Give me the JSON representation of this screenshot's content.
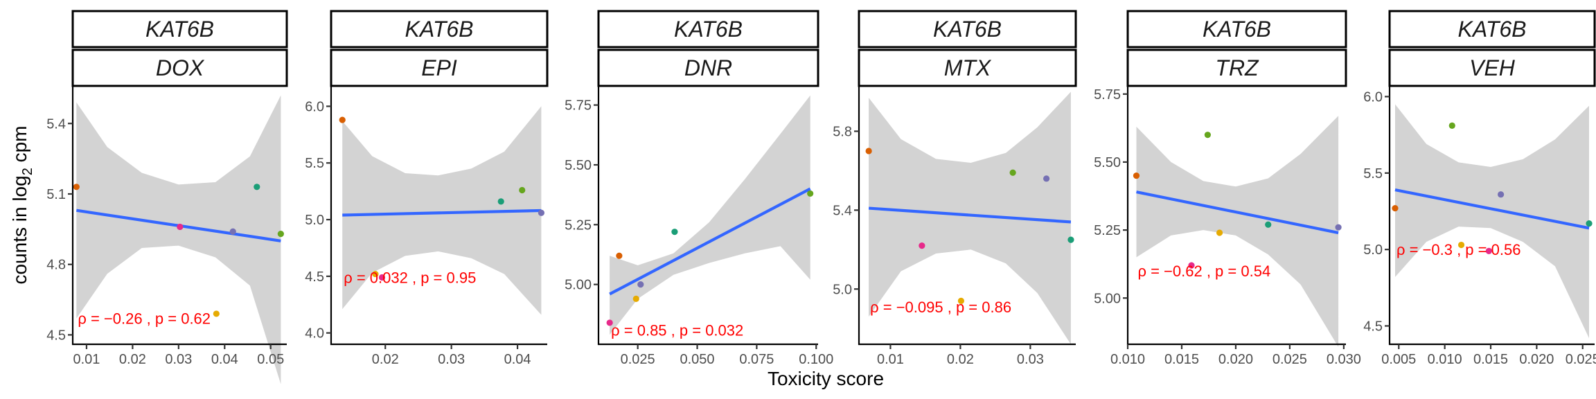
{
  "chart_data": {
    "type": "scatter",
    "xlabel": "Toxicity score",
    "ylabel_prefix": "counts in log",
    "ylabel_sub": "2",
    "ylabel_suffix": " cpm",
    "gene": "KAT6B",
    "panels": [
      {
        "treatment": "DOX",
        "xlim": [
          0.007,
          0.0535
        ],
        "ylim": [
          4.46,
          5.56
        ],
        "xticks": [
          0.01,
          0.02,
          0.03,
          0.04,
          0.05
        ],
        "xtick_labels": [
          "0.01",
          "0.02",
          "0.03",
          "0.04",
          "0.05"
        ],
        "yticks": [
          4.5,
          4.8,
          5.1,
          5.4
        ],
        "ytick_labels": [
          "4.5",
          "4.8",
          "5.1",
          "5.4"
        ],
        "points": [
          {
            "x": 0.0078,
            "y": 5.13,
            "color": "#d95f02"
          },
          {
            "x": 0.0303,
            "y": 4.96,
            "color": "#e7298a"
          },
          {
            "x": 0.0418,
            "y": 4.94,
            "color": "#7570b3"
          },
          {
            "x": 0.047,
            "y": 5.13,
            "color": "#1b9e77"
          },
          {
            "x": 0.0522,
            "y": 4.93,
            "color": "#66a61e"
          },
          {
            "x": 0.0382,
            "y": 4.59,
            "color": "#e6ab02"
          }
        ],
        "fit": {
          "x0": 0.0078,
          "y0": 5.03,
          "x1": 0.0522,
          "y1": 4.9
        },
        "band": {
          "xs": [
            0.0078,
            0.0145,
            0.022,
            0.03,
            0.038,
            0.0455,
            0.0522
          ],
          "upper": [
            5.49,
            5.3,
            5.19,
            5.14,
            5.15,
            5.26,
            5.52
          ],
          "lower": [
            4.57,
            4.76,
            4.87,
            4.88,
            4.83,
            4.71,
            4.29
          ]
        },
        "annotation": "ρ = −0.26 , p = 0.62",
        "ann_x": 0.0078,
        "ann_y": 4.57
      },
      {
        "treatment": "EPI",
        "xlim": [
          0.0118,
          0.0445
        ],
        "ylim": [
          3.9,
          6.18
        ],
        "xticks": [
          0.02,
          0.03,
          0.04
        ],
        "xtick_labels": [
          "0.02",
          "0.03",
          "0.04"
        ],
        "yticks": [
          4.0,
          4.5,
          5.0,
          5.5,
          6.0
        ],
        "ytick_labels": [
          "4.0",
          "4.5",
          "5.0",
          "5.5",
          "6.0"
        ],
        "points": [
          {
            "x": 0.0135,
            "y": 5.88,
            "color": "#d95f02"
          },
          {
            "x": 0.0185,
            "y": 4.52,
            "color": "#e6ab02"
          },
          {
            "x": 0.0195,
            "y": 4.49,
            "color": "#e7298a"
          },
          {
            "x": 0.0375,
            "y": 5.16,
            "color": "#1b9e77"
          },
          {
            "x": 0.0407,
            "y": 5.26,
            "color": "#66a61e"
          },
          {
            "x": 0.0436,
            "y": 5.06,
            "color": "#7570b3"
          }
        ],
        "fit": {
          "x0": 0.0135,
          "y0": 5.04,
          "x1": 0.0436,
          "y1": 5.08
        },
        "band": {
          "xs": [
            0.0135,
            0.018,
            0.023,
            0.028,
            0.033,
            0.038,
            0.0436
          ],
          "upper": [
            5.87,
            5.56,
            5.41,
            5.39,
            5.45,
            5.6,
            6.0
          ],
          "lower": [
            4.21,
            4.53,
            4.68,
            4.72,
            4.66,
            4.52,
            4.16
          ]
        },
        "annotation": "ρ = 0.032 , p = 0.95",
        "ann_x": 0.0135,
        "ann_y": 4.49
      },
      {
        "treatment": "DNR",
        "xlim": [
          0.0085,
          0.1008
        ],
        "ylim": [
          4.75,
          5.83
        ],
        "xticks": [
          0.025,
          0.05,
          0.075,
          0.1
        ],
        "xtick_labels": [
          "0.025",
          "0.050",
          "0.075",
          "0.100"
        ],
        "yticks": [
          5.0,
          5.25,
          5.5,
          5.75
        ],
        "ytick_labels": [
          "5.00",
          "5.25",
          "5.50",
          "5.75"
        ],
        "points": [
          {
            "x": 0.0132,
            "y": 4.84,
            "color": "#e7298a"
          },
          {
            "x": 0.0172,
            "y": 5.12,
            "color": "#d95f02"
          },
          {
            "x": 0.0243,
            "y": 4.94,
            "color": "#e6ab02"
          },
          {
            "x": 0.0262,
            "y": 5.0,
            "color": "#7570b3"
          },
          {
            "x": 0.0405,
            "y": 5.22,
            "color": "#1b9e77"
          },
          {
            "x": 0.0975,
            "y": 5.38,
            "color": "#66a61e"
          }
        ],
        "fit": {
          "x0": 0.0132,
          "y0": 4.96,
          "x1": 0.0975,
          "y1": 5.4
        },
        "band": {
          "xs": [
            0.0132,
            0.025,
            0.04,
            0.055,
            0.07,
            0.085,
            0.0975
          ],
          "upper": [
            5.12,
            5.08,
            5.13,
            5.26,
            5.44,
            5.63,
            5.79
          ],
          "lower": [
            4.79,
            4.94,
            5.04,
            5.09,
            5.13,
            5.16,
            5.02
          ]
        },
        "annotation": "ρ = 0.85 , p = 0.032",
        "ann_x": 0.0132,
        "ann_y": 4.81
      },
      {
        "treatment": "MTX",
        "xlim": [
          0.0055,
          0.0365
        ],
        "ylim": [
          4.72,
          6.03
        ],
        "xticks": [
          0.01,
          0.02,
          0.03
        ],
        "xtick_labels": [
          "0.01",
          "0.02",
          "0.03"
        ],
        "yticks": [
          5.0,
          5.4,
          5.8
        ],
        "ytick_labels": [
          "5.0",
          "5.4",
          "5.8"
        ],
        "points": [
          {
            "x": 0.0069,
            "y": 5.7,
            "color": "#d95f02"
          },
          {
            "x": 0.0145,
            "y": 5.22,
            "color": "#e7298a"
          },
          {
            "x": 0.0201,
            "y": 4.94,
            "color": "#e6ab02"
          },
          {
            "x": 0.0275,
            "y": 5.59,
            "color": "#66a61e"
          },
          {
            "x": 0.0323,
            "y": 5.56,
            "color": "#7570b3"
          },
          {
            "x": 0.0358,
            "y": 5.25,
            "color": "#1b9e77"
          }
        ],
        "fit": {
          "x0": 0.0069,
          "y0": 5.41,
          "x1": 0.0358,
          "y1": 5.34
        },
        "band": {
          "xs": [
            0.0069,
            0.0115,
            0.0165,
            0.0215,
            0.0265,
            0.031,
            0.0358
          ],
          "upper": [
            5.97,
            5.76,
            5.66,
            5.64,
            5.69,
            5.82,
            6.0
          ],
          "lower": [
            4.86,
            5.09,
            5.18,
            5.2,
            5.13,
            4.98,
            4.72
          ]
        },
        "annotation": "ρ = −0.095 , p = 0.86",
        "ann_x": 0.0069,
        "ann_y": 4.91
      },
      {
        "treatment": "TRZ",
        "xlim": [
          0.01,
          0.0302
        ],
        "ylim": [
          4.83,
          5.78
        ],
        "xticks": [
          0.01,
          0.015,
          0.02,
          0.025,
          0.03
        ],
        "xtick_labels": [
          "0.010",
          "0.015",
          "0.020",
          "0.025",
          "0.030"
        ],
        "yticks": [
          5.0,
          5.25,
          5.5,
          5.75
        ],
        "ytick_labels": [
          "5.00",
          "5.25",
          "5.50",
          "5.75"
        ],
        "points": [
          {
            "x": 0.0108,
            "y": 5.45,
            "color": "#d95f02"
          },
          {
            "x": 0.0159,
            "y": 5.12,
            "color": "#e7298a"
          },
          {
            "x": 0.0174,
            "y": 5.6,
            "color": "#66a61e"
          },
          {
            "x": 0.0185,
            "y": 5.24,
            "color": "#e6ab02"
          },
          {
            "x": 0.023,
            "y": 5.27,
            "color": "#1b9e77"
          },
          {
            "x": 0.0295,
            "y": 5.26,
            "color": "#7570b3"
          }
        ],
        "fit": {
          "x0": 0.0108,
          "y0": 5.39,
          "x1": 0.0295,
          "y1": 5.24
        },
        "band": {
          "xs": [
            0.0108,
            0.014,
            0.017,
            0.02,
            0.023,
            0.026,
            0.0295
          ],
          "upper": [
            5.63,
            5.5,
            5.43,
            5.41,
            5.44,
            5.53,
            5.67
          ],
          "lower": [
            5.15,
            5.23,
            5.25,
            5.23,
            5.16,
            5.05,
            4.82
          ]
        },
        "annotation": "ρ = −0.62 , p = 0.54",
        "ann_x": 0.0108,
        "ann_y": 5.1
      },
      {
        "treatment": "VEH",
        "xlim": [
          0.004,
          0.0263
        ],
        "ylim": [
          4.38,
          6.07
        ],
        "xticks": [
          0.005,
          0.01,
          0.015,
          0.02,
          0.025
        ],
        "xtick_labels": [
          "0.005",
          "0.010",
          "0.015",
          "0.020",
          "0.025"
        ],
        "yticks": [
          4.5,
          5.0,
          5.5,
          6.0
        ],
        "ytick_labels": [
          "4.5",
          "5.0",
          "5.5",
          "6.0"
        ],
        "points": [
          {
            "x": 0.0046,
            "y": 5.27,
            "color": "#d95f02"
          },
          {
            "x": 0.0108,
            "y": 5.81,
            "color": "#66a61e"
          },
          {
            "x": 0.0118,
            "y": 5.03,
            "color": "#e6ab02"
          },
          {
            "x": 0.0148,
            "y": 4.99,
            "color": "#e7298a"
          },
          {
            "x": 0.0161,
            "y": 5.36,
            "color": "#7570b3"
          },
          {
            "x": 0.0257,
            "y": 5.17,
            "color": "#1b9e77"
          }
        ],
        "fit": {
          "x0": 0.0046,
          "y0": 5.39,
          "x1": 0.0257,
          "y1": 5.14
        },
        "band": {
          "xs": [
            0.0046,
            0.008,
            0.0115,
            0.015,
            0.0185,
            0.022,
            0.0257
          ],
          "upper": [
            5.95,
            5.69,
            5.57,
            5.54,
            5.59,
            5.72,
            5.94
          ],
          "lower": [
            4.82,
            5.05,
            5.15,
            5.14,
            5.05,
            4.89,
            4.42
          ]
        },
        "annotation": "ρ = −0.3 , p = 0.56",
        "ann_x": 0.0046,
        "ann_y": 5.0
      }
    ]
  }
}
